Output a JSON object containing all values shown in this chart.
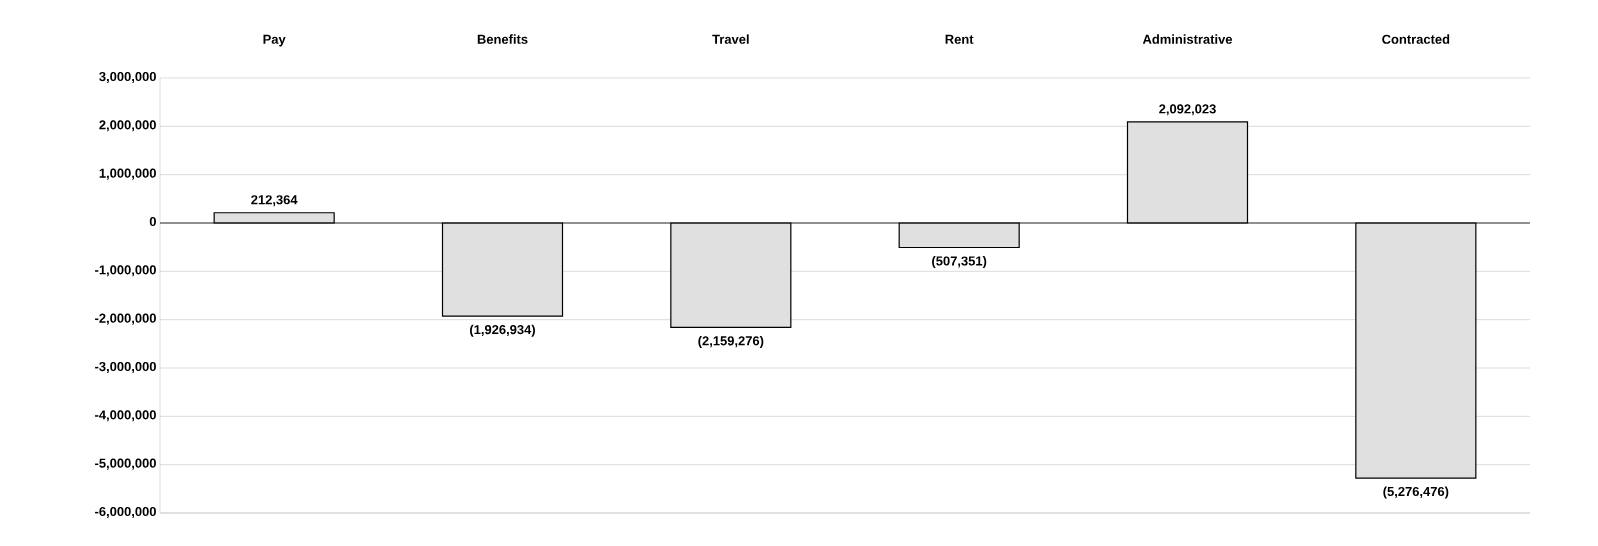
{
  "chart_data": {
    "type": "bar",
    "categories": [
      "Pay",
      "Benefits",
      "Travel",
      "Rent",
      "Administrative",
      "Contracted"
    ],
    "values": [
      212364,
      -1926934,
      -2159276,
      -507351,
      2092023,
      -5276476
    ],
    "value_labels": [
      "212,364",
      "(1,926,934)",
      "(2,159,276)",
      "(507,351)",
      "2,092,023",
      "(5,276,476)"
    ],
    "color": "#e0e0e0",
    "ylim": [
      -6000000,
      3000000
    ],
    "yticks": [
      {
        "value": 3000000,
        "label": "3,000,000"
      },
      {
        "value": 2000000,
        "label": "2,000,000"
      },
      {
        "value": 1000000,
        "label": "1,000,000"
      },
      {
        "value": 0,
        "label": "0"
      },
      {
        "value": -1000000,
        "label": "-1,000,000"
      },
      {
        "value": -2000000,
        "label": "-2,000,000"
      },
      {
        "value": -3000000,
        "label": "-3,000,000"
      },
      {
        "value": -4000000,
        "label": "-4,000,000"
      },
      {
        "value": -5000000,
        "label": "-5,000,000"
      },
      {
        "value": -6000000,
        "label": "-6,000,000"
      }
    ],
    "grid": "y"
  }
}
